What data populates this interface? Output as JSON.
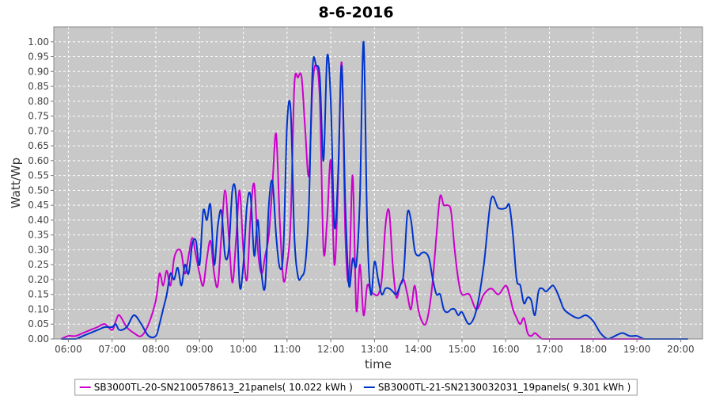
{
  "chart_data": {
    "type": "line",
    "title": "8-6-2016",
    "xlabel": "time",
    "ylabel": "Watt/Wp",
    "xlim": [
      "05:40",
      "20:30"
    ],
    "ylim": [
      0,
      1.05
    ],
    "grid": true,
    "legend_position": "bottom",
    "x_ticks": [
      "06:00",
      "07:00",
      "08:00",
      "09:00",
      "10:00",
      "11:00",
      "12:00",
      "13:00",
      "14:00",
      "15:00",
      "16:00",
      "17:00",
      "18:00",
      "19:00",
      "20:00"
    ],
    "y_ticks": [
      "0.00",
      "0.05",
      "0.10",
      "0.15",
      "0.20",
      "0.25",
      "0.30",
      "0.35",
      "0.40",
      "0.45",
      "0.50",
      "0.55",
      "0.60",
      "0.65",
      "0.70",
      "0.75",
      "0.80",
      "0.85",
      "0.90",
      "0.95",
      "1.00"
    ],
    "colors": {
      "plot_background": "#c8c8c8",
      "grid": "#ffffff",
      "series_1": "#cc00cc",
      "series_2": "#0033cc"
    },
    "series": [
      {
        "name": "SB3000TL-20-SN2100578613_21panels( 10.022 kWh )",
        "x": [
          "05:50",
          "06:00",
          "06:10",
          "06:20",
          "06:30",
          "06:40",
          "06:50",
          "07:00",
          "07:05",
          "07:10",
          "07:20",
          "07:30",
          "07:40",
          "07:50",
          "08:00",
          "08:05",
          "08:10",
          "08:15",
          "08:20",
          "08:25",
          "08:30",
          "08:35",
          "08:40",
          "08:45",
          "08:50",
          "08:55",
          "09:00",
          "09:05",
          "09:10",
          "09:15",
          "09:20",
          "09:25",
          "09:30",
          "09:35",
          "09:40",
          "09:45",
          "09:50",
          "09:55",
          "10:00",
          "10:05",
          "10:10",
          "10:15",
          "10:20",
          "10:25",
          "10:30",
          "10:35",
          "10:40",
          "10:45",
          "10:50",
          "10:55",
          "11:00",
          "11:05",
          "11:10",
          "11:15",
          "11:20",
          "11:25",
          "11:30",
          "11:35",
          "11:40",
          "11:45",
          "11:50",
          "11:55",
          "12:00",
          "12:05",
          "12:10",
          "12:15",
          "12:20",
          "12:25",
          "12:30",
          "12:35",
          "12:40",
          "12:45",
          "12:50",
          "12:55",
          "13:00",
          "13:05",
          "13:10",
          "13:15",
          "13:20",
          "13:25",
          "13:30",
          "13:35",
          "13:40",
          "13:45",
          "13:50",
          "13:55",
          "14:00",
          "14:05",
          "14:10",
          "14:15",
          "14:20",
          "14:25",
          "14:30",
          "14:35",
          "14:40",
          "14:45",
          "14:50",
          "14:55",
          "15:00",
          "15:10",
          "15:20",
          "15:30",
          "15:40",
          "15:50",
          "16:00",
          "16:05",
          "16:10",
          "16:15",
          "16:20",
          "16:25",
          "16:30",
          "16:35",
          "16:40",
          "16:45",
          "16:50",
          "16:55",
          "17:00",
          "17:05",
          "17:10",
          "17:15",
          "17:20",
          "17:30",
          "17:40",
          "17:50",
          "18:00",
          "18:10",
          "18:20",
          "18:30",
          "18:40",
          "18:50",
          "19:00",
          "19:10",
          "19:20",
          "19:30",
          "19:40",
          "19:50",
          "20:00",
          "20:10"
        ],
        "values": [
          0.0,
          0.01,
          0.01,
          0.02,
          0.03,
          0.04,
          0.05,
          0.03,
          0.06,
          0.08,
          0.04,
          0.02,
          0.01,
          0.05,
          0.13,
          0.22,
          0.18,
          0.23,
          0.18,
          0.27,
          0.3,
          0.29,
          0.22,
          0.28,
          0.34,
          0.28,
          0.22,
          0.18,
          0.27,
          0.33,
          0.22,
          0.18,
          0.35,
          0.5,
          0.35,
          0.19,
          0.33,
          0.5,
          0.3,
          0.2,
          0.42,
          0.52,
          0.3,
          0.22,
          0.28,
          0.35,
          0.52,
          0.69,
          0.4,
          0.2,
          0.25,
          0.4,
          0.85,
          0.88,
          0.88,
          0.7,
          0.55,
          0.85,
          0.92,
          0.8,
          0.3,
          0.4,
          0.6,
          0.25,
          0.52,
          0.93,
          0.35,
          0.2,
          0.55,
          0.1,
          0.25,
          0.08,
          0.18,
          0.16,
          0.15,
          0.15,
          0.2,
          0.38,
          0.43,
          0.25,
          0.14,
          0.18,
          0.2,
          0.15,
          0.1,
          0.18,
          0.1,
          0.06,
          0.05,
          0.1,
          0.2,
          0.35,
          0.48,
          0.45,
          0.45,
          0.43,
          0.3,
          0.2,
          0.15,
          0.15,
          0.1,
          0.15,
          0.17,
          0.15,
          0.18,
          0.15,
          0.1,
          0.07,
          0.05,
          0.07,
          0.02,
          0.01,
          0.02,
          0.01,
          0.0,
          0.0,
          0.0,
          0.0,
          0.0,
          0.0,
          0.0,
          0.0,
          0.0,
          0.0,
          0.0,
          0.0,
          0.0,
          0.0,
          0.0,
          0.0,
          0.0,
          0.0,
          0.0,
          0.0,
          0.0,
          0.0,
          0.0,
          0.0
        ]
      },
      {
        "name": "SB3000TL-21-SN2130032031_19panels( 9.301 kWh )",
        "x": [
          "05:50",
          "06:00",
          "06:10",
          "06:20",
          "06:30",
          "06:40",
          "06:50",
          "07:00",
          "07:05",
          "07:10",
          "07:20",
          "07:30",
          "07:40",
          "07:50",
          "08:00",
          "08:05",
          "08:10",
          "08:15",
          "08:20",
          "08:25",
          "08:30",
          "08:35",
          "08:40",
          "08:45",
          "08:50",
          "08:55",
          "09:00",
          "09:05",
          "09:10",
          "09:15",
          "09:20",
          "09:25",
          "09:30",
          "09:35",
          "09:40",
          "09:45",
          "09:50",
          "09:55",
          "10:00",
          "10:05",
          "10:10",
          "10:15",
          "10:20",
          "10:25",
          "10:30",
          "10:35",
          "10:40",
          "10:45",
          "10:50",
          "10:55",
          "11:00",
          "11:05",
          "11:10",
          "11:15",
          "11:20",
          "11:25",
          "11:30",
          "11:35",
          "11:40",
          "11:45",
          "11:50",
          "11:55",
          "12:00",
          "12:05",
          "12:10",
          "12:15",
          "12:20",
          "12:25",
          "12:30",
          "12:35",
          "12:40",
          "12:45",
          "12:50",
          "12:55",
          "13:00",
          "13:05",
          "13:10",
          "13:15",
          "13:20",
          "13:25",
          "13:30",
          "13:35",
          "13:40",
          "13:45",
          "13:50",
          "13:55",
          "14:00",
          "14:05",
          "14:10",
          "14:15",
          "14:20",
          "14:25",
          "14:30",
          "14:35",
          "14:40",
          "14:45",
          "14:50",
          "14:55",
          "15:00",
          "15:10",
          "15:20",
          "15:30",
          "15:40",
          "15:50",
          "16:00",
          "16:05",
          "16:10",
          "16:15",
          "16:20",
          "16:25",
          "16:30",
          "16:35",
          "16:40",
          "16:45",
          "16:50",
          "16:55",
          "17:00",
          "17:05",
          "17:10",
          "17:15",
          "17:20",
          "17:30",
          "17:40",
          "17:50",
          "18:00",
          "18:10",
          "18:20",
          "18:30",
          "18:40",
          "18:50",
          "19:00",
          "19:10",
          "19:20",
          "19:30",
          "19:40",
          "19:50",
          "20:00",
          "20:10"
        ],
        "values": [
          0.0,
          0.0,
          0.0,
          0.01,
          0.02,
          0.03,
          0.04,
          0.04,
          0.05,
          0.03,
          0.04,
          0.08,
          0.05,
          0.01,
          0.01,
          0.05,
          0.1,
          0.15,
          0.22,
          0.2,
          0.24,
          0.18,
          0.25,
          0.22,
          0.32,
          0.33,
          0.25,
          0.43,
          0.4,
          0.45,
          0.25,
          0.38,
          0.43,
          0.28,
          0.3,
          0.5,
          0.48,
          0.18,
          0.25,
          0.45,
          0.48,
          0.28,
          0.4,
          0.22,
          0.18,
          0.45,
          0.53,
          0.35,
          0.24,
          0.3,
          0.72,
          0.77,
          0.35,
          0.21,
          0.21,
          0.25,
          0.45,
          0.91,
          0.92,
          0.88,
          0.6,
          0.95,
          0.8,
          0.38,
          0.55,
          0.92,
          0.45,
          0.18,
          0.27,
          0.25,
          0.48,
          1.0,
          0.38,
          0.15,
          0.26,
          0.2,
          0.15,
          0.17,
          0.17,
          0.16,
          0.15,
          0.18,
          0.22,
          0.42,
          0.4,
          0.3,
          0.28,
          0.29,
          0.29,
          0.27,
          0.2,
          0.15,
          0.15,
          0.1,
          0.09,
          0.1,
          0.1,
          0.08,
          0.09,
          0.05,
          0.1,
          0.25,
          0.47,
          0.44,
          0.44,
          0.45,
          0.35,
          0.2,
          0.18,
          0.12,
          0.14,
          0.13,
          0.08,
          0.16,
          0.17,
          0.16,
          0.17,
          0.18,
          0.16,
          0.13,
          0.1,
          0.08,
          0.07,
          0.08,
          0.06,
          0.02,
          0.0,
          0.01,
          0.02,
          0.01,
          0.01,
          0.0,
          0.0,
          0.0,
          0.0,
          0.0,
          0.0,
          0.0
        ]
      }
    ]
  }
}
